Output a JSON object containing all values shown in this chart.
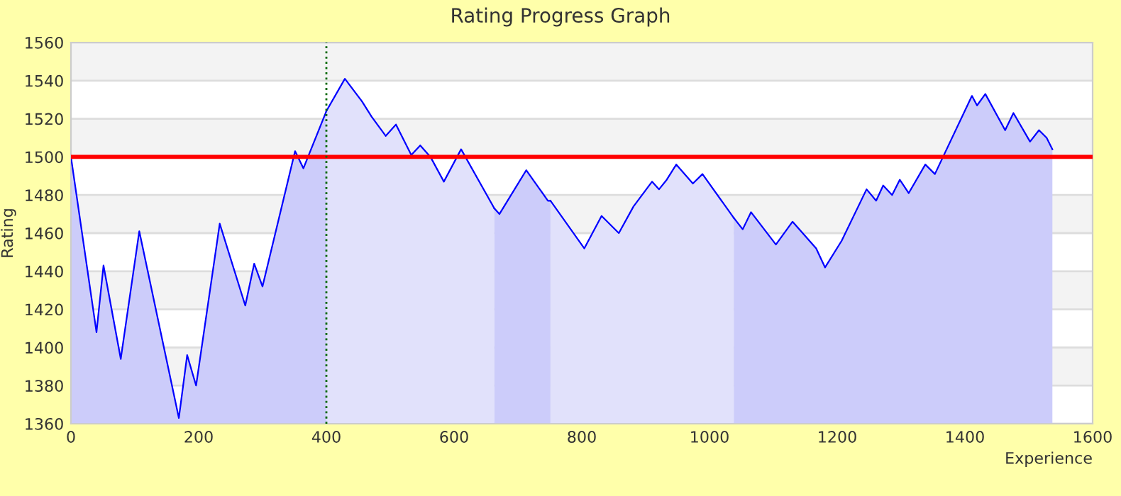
{
  "chart_data": {
    "type": "area",
    "title": "Rating Progress Graph",
    "xlabel": "Experience",
    "ylabel": "Rating",
    "xlim": [
      0,
      1600
    ],
    "ylim": [
      1360,
      1560
    ],
    "xticks": [
      0,
      200,
      400,
      600,
      800,
      1000,
      1200,
      1400,
      1600
    ],
    "yticks": [
      1360,
      1380,
      1400,
      1420,
      1440,
      1460,
      1480,
      1500,
      1520,
      1540,
      1560
    ],
    "grid": "y",
    "legend": false,
    "series": [
      {
        "color": "#ccccfa",
        "x": [
          0,
          40,
          51,
          78,
          107,
          169,
          182,
          196,
          233,
          273,
          287,
          300,
          351,
          364,
          400
        ],
        "values": [
          1500,
          1408,
          1443,
          1394,
          1461,
          1363,
          1396,
          1380,
          1465,
          1422,
          1444,
          1432,
          1503,
          1494,
          1524
        ]
      },
      {
        "color": "#e1e1fb",
        "x": [
          400,
          429,
          456,
          471,
          493,
          509,
          533,
          547,
          563,
          584,
          611,
          663
        ],
        "values": [
          1524,
          1541,
          1529,
          1521,
          1511,
          1517,
          1501,
          1506,
          1500,
          1487,
          1504,
          1473
        ]
      },
      {
        "color": "#ccccfa",
        "x": [
          663,
          671,
          713,
          747,
          751
        ],
        "values": [
          1473,
          1470,
          1493,
          1477,
          1477
        ]
      },
      {
        "color": "#e1e1fb",
        "x": [
          751,
          804,
          831,
          858,
          881,
          910,
          921,
          933,
          948,
          974,
          989,
          1038
        ],
        "values": [
          1477,
          1452,
          1469,
          1460,
          1474,
          1487,
          1483,
          1488,
          1496,
          1486,
          1491,
          1468
        ]
      },
      {
        "color": "#ccccfa",
        "x": [
          1038,
          1052,
          1065,
          1104,
          1130,
          1167,
          1181,
          1207,
          1246,
          1261,
          1272,
          1286,
          1298,
          1312,
          1338,
          1353,
          1411,
          1419,
          1432,
          1463,
          1476,
          1502,
          1516,
          1528,
          1537
        ],
        "values": [
          1468,
          1462,
          1471,
          1454,
          1466,
          1452,
          1442,
          1456,
          1483,
          1477,
          1485,
          1480,
          1488,
          1481,
          1496,
          1491,
          1532,
          1527,
          1533,
          1514,
          1523,
          1508,
          1514,
          1510,
          1504
        ]
      }
    ],
    "ref_lines": [
      {
        "axis": "y",
        "value": 1500,
        "color": "#ff0000",
        "line_style": "solid"
      },
      {
        "axis": "x",
        "value": 400,
        "color": "#006600",
        "line_style": "dotted"
      }
    ]
  }
}
